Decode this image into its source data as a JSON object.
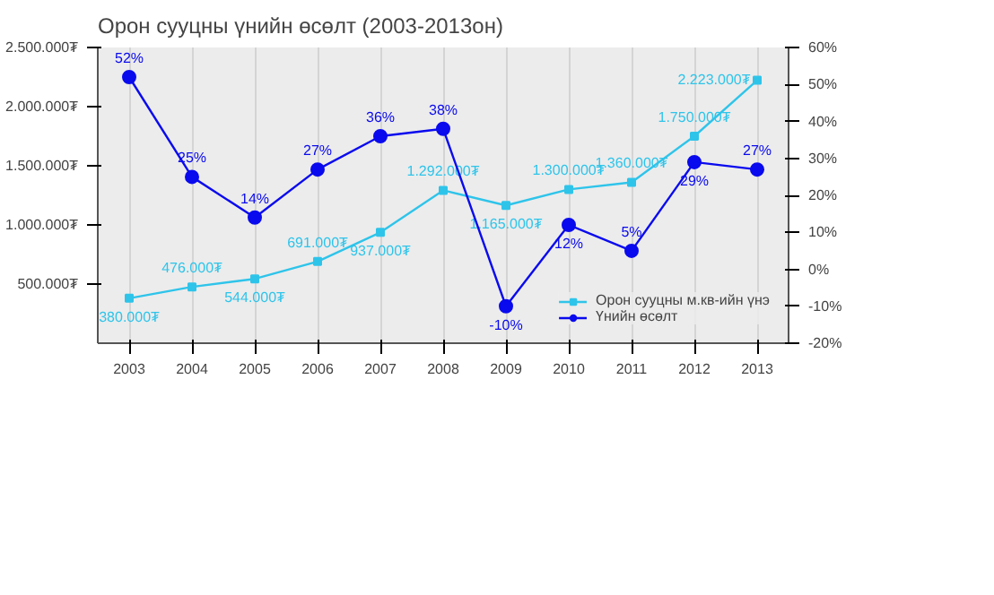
{
  "chart_data": {
    "type": "line",
    "title": "Орон сууцны үнийн өсөлт (2003-2013он)",
    "categories": [
      "2003",
      "2004",
      "2005",
      "2006",
      "2007",
      "2008",
      "2009",
      "2010",
      "2011",
      "2012",
      "2013"
    ],
    "series": [
      {
        "name": "Орон сууцны м.кв-ийн үнэ",
        "color": "#2ec4ea",
        "marker": "square",
        "values": [
          380000,
          476000,
          544000,
          691000,
          937000,
          1292000,
          1165000,
          1300000,
          1360000,
          1750000,
          2223000
        ],
        "value_labels": [
          "380.000₮",
          "476.000₮",
          "544.000₮",
          "691.000₮",
          "937.000₮",
          "1.292.000₮",
          "1.165.000₮",
          "1.300.000₮",
          "1.360.000₮",
          "1.750.000₮",
          "2.223.000₮"
        ]
      },
      {
        "name": "Үнийн өсөлт",
        "color": "#0a0aee",
        "axis": "y2",
        "marker": "circle",
        "values": [
          52,
          25,
          14,
          27,
          36,
          38,
          -10,
          12,
          5,
          29,
          27
        ],
        "value_labels": [
          "52%",
          "25%",
          "14%",
          "27%",
          "36%",
          "38%",
          "-10%",
          "12%",
          "5%",
          "29%",
          "27%"
        ]
      }
    ],
    "ylim": [
      0,
      2500000
    ],
    "yticks": [
      {
        "value": 500000,
        "label": "500.000₮"
      },
      {
        "value": 1000000,
        "label": "1.000.000₮"
      },
      {
        "value": 1500000,
        "label": "1.500.000₮"
      },
      {
        "value": 2000000,
        "label": "2.000.000₮"
      },
      {
        "value": 2500000,
        "label": "2.500.000₮"
      }
    ],
    "y2lim": [
      -20,
      60
    ],
    "y2ticks": [
      {
        "value": -20,
        "label": "-20%"
      },
      {
        "value": -10,
        "label": "-10%"
      },
      {
        "value": 0,
        "label": "0%"
      },
      {
        "value": 10,
        "label": "10%"
      },
      {
        "value": 20,
        "label": "20%"
      },
      {
        "value": 30,
        "label": "30%"
      },
      {
        "value": 40,
        "label": "40%"
      },
      {
        "value": 50,
        "label": "50%"
      },
      {
        "value": 60,
        "label": "60%"
      }
    ],
    "grid": "x",
    "legend": "bottom right",
    "line_style": "solid"
  }
}
